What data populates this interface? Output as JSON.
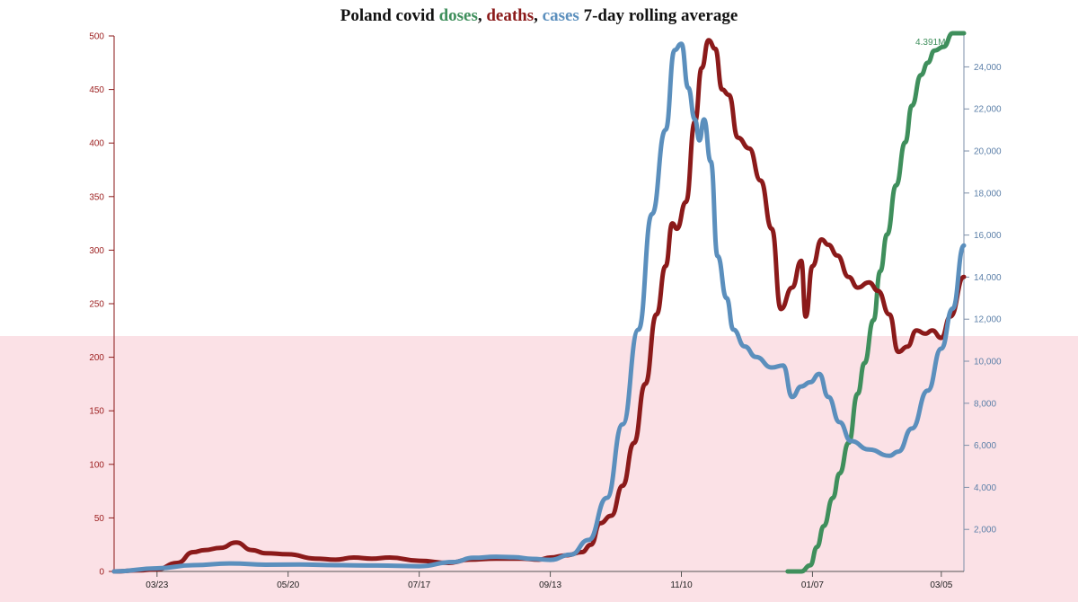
{
  "title": {
    "prefix": "Poland covid ",
    "doses": "doses",
    "sep1": ", ",
    "deaths": "deaths",
    "sep2": ", ",
    "cases": "cases",
    "suffix": " 7-day rolling average"
  },
  "chart_data": {
    "type": "line",
    "title": "Poland covid doses, deaths, cases 7-day rolling average",
    "x_start": "2020-03-04",
    "x_end": "2021-03-15",
    "x_ticks": [
      "03/23",
      "05/20",
      "07/17",
      "09/13",
      "11/10",
      "01/07",
      "03/05"
    ],
    "y_left": {
      "series": "deaths",
      "range": [
        0,
        500
      ],
      "ticks": [
        0,
        50,
        100,
        150,
        200,
        250,
        300,
        350,
        400,
        450,
        500
      ],
      "color": "#8b1a1a"
    },
    "y_right": {
      "series": "cases",
      "range": [
        0,
        25600
      ],
      "ticks": [
        "2,000",
        "4,000",
        "6,000",
        "8,000",
        "10,000",
        "12,000",
        "14,000",
        "16,000",
        "18,000",
        "20,000",
        "22,000",
        "24,000"
      ],
      "color": "#5b8fbd"
    },
    "annotation": "4.391M",
    "series": [
      {
        "name": "doses",
        "color": "#3f8f5c",
        "scale": "own",
        "max": 4391000,
        "points": [
          [
            "2020-12-27",
            0
          ],
          [
            "2021-01-02",
            0
          ],
          [
            "2021-01-06",
            50000
          ],
          [
            "2021-01-09",
            200000
          ],
          [
            "2021-01-12",
            370000
          ],
          [
            "2021-01-16",
            600000
          ],
          [
            "2021-01-19",
            800000
          ],
          [
            "2021-01-23",
            1050000
          ],
          [
            "2021-01-27",
            1450000
          ],
          [
            "2021-01-30",
            1700000
          ],
          [
            "2021-02-03",
            2050000
          ],
          [
            "2021-02-06",
            2450000
          ],
          [
            "2021-02-09",
            2750000
          ],
          [
            "2021-02-13",
            3150000
          ],
          [
            "2021-02-17",
            3500000
          ],
          [
            "2021-02-20",
            3800000
          ],
          [
            "2021-02-24",
            4050000
          ],
          [
            "2021-02-27",
            4150000
          ],
          [
            "2021-03-02",
            4250000
          ],
          [
            "2021-03-06",
            4280000
          ],
          [
            "2021-03-10",
            4391000
          ],
          [
            "2021-03-15",
            4391000
          ]
        ]
      },
      {
        "name": "deaths",
        "color": "#8b1a1a",
        "scale": "left",
        "points": [
          [
            "2020-03-04",
            0
          ],
          [
            "2020-03-15",
            1
          ],
          [
            "2020-03-23",
            2
          ],
          [
            "2020-04-01",
            8
          ],
          [
            "2020-04-08",
            18
          ],
          [
            "2020-04-13",
            20
          ],
          [
            "2020-04-20",
            22
          ],
          [
            "2020-04-27",
            27
          ],
          [
            "2020-05-04",
            20
          ],
          [
            "2020-05-10",
            17
          ],
          [
            "2020-05-20",
            16
          ],
          [
            "2020-06-01",
            12
          ],
          [
            "2020-06-10",
            11
          ],
          [
            "2020-06-18",
            13
          ],
          [
            "2020-06-26",
            12
          ],
          [
            "2020-07-04",
            13
          ],
          [
            "2020-07-17",
            10
          ],
          [
            "2020-07-30",
            8
          ],
          [
            "2020-08-08",
            11
          ],
          [
            "2020-08-20",
            12
          ],
          [
            "2020-08-31",
            12
          ],
          [
            "2020-09-08",
            11
          ],
          [
            "2020-09-13",
            13
          ],
          [
            "2020-09-20",
            15
          ],
          [
            "2020-09-27",
            18
          ],
          [
            "2020-10-01",
            25
          ],
          [
            "2020-10-05",
            45
          ],
          [
            "2020-10-10",
            52
          ],
          [
            "2020-10-15",
            80
          ],
          [
            "2020-10-20",
            120
          ],
          [
            "2020-10-25",
            175
          ],
          [
            "2020-10-30",
            240
          ],
          [
            "2020-11-03",
            285
          ],
          [
            "2020-11-06",
            325
          ],
          [
            "2020-11-08",
            320
          ],
          [
            "2020-11-12",
            345
          ],
          [
            "2020-11-16",
            420
          ],
          [
            "2020-11-19",
            470
          ],
          [
            "2020-11-22",
            496
          ],
          [
            "2020-11-25",
            488
          ],
          [
            "2020-11-28",
            450
          ],
          [
            "2020-12-01",
            445
          ],
          [
            "2020-12-05",
            405
          ],
          [
            "2020-12-10",
            395
          ],
          [
            "2020-12-15",
            365
          ],
          [
            "2020-12-20",
            320
          ],
          [
            "2020-12-24",
            245
          ],
          [
            "2020-12-29",
            265
          ],
          [
            "2021-01-02",
            290
          ],
          [
            "2021-01-04",
            238
          ],
          [
            "2021-01-07",
            285
          ],
          [
            "2021-01-11",
            310
          ],
          [
            "2021-01-14",
            305
          ],
          [
            "2021-01-18",
            295
          ],
          [
            "2021-01-23",
            275
          ],
          [
            "2021-01-27",
            265
          ],
          [
            "2021-02-01",
            270
          ],
          [
            "2021-02-05",
            262
          ],
          [
            "2021-02-10",
            240
          ],
          [
            "2021-02-14",
            205
          ],
          [
            "2021-02-18",
            210
          ],
          [
            "2021-02-22",
            225
          ],
          [
            "2021-02-26",
            222
          ],
          [
            "2021-03-01",
            225
          ],
          [
            "2021-03-05",
            218
          ],
          [
            "2021-03-09",
            238
          ],
          [
            "2021-03-15",
            275
          ]
        ]
      },
      {
        "name": "cases",
        "color": "#5b8fbd",
        "scale": "right",
        "points": [
          [
            "2020-03-04",
            0
          ],
          [
            "2020-03-23",
            150
          ],
          [
            "2020-04-08",
            300
          ],
          [
            "2020-04-25",
            380
          ],
          [
            "2020-05-10",
            320
          ],
          [
            "2020-05-25",
            330
          ],
          [
            "2020-06-10",
            300
          ],
          [
            "2020-06-28",
            280
          ],
          [
            "2020-07-17",
            250
          ],
          [
            "2020-08-01",
            450
          ],
          [
            "2020-08-10",
            650
          ],
          [
            "2020-08-20",
            700
          ],
          [
            "2020-08-28",
            680
          ],
          [
            "2020-09-05",
            600
          ],
          [
            "2020-09-13",
            550
          ],
          [
            "2020-09-22",
            800
          ],
          [
            "2020-09-30",
            1500
          ],
          [
            "2020-10-08",
            3500
          ],
          [
            "2020-10-15",
            7000
          ],
          [
            "2020-10-22",
            11500
          ],
          [
            "2020-10-28",
            17000
          ],
          [
            "2020-11-03",
            21000
          ],
          [
            "2020-11-07",
            24800
          ],
          [
            "2020-11-10",
            25100
          ],
          [
            "2020-11-13",
            23000
          ],
          [
            "2020-11-16",
            21500
          ],
          [
            "2020-11-18",
            20500
          ],
          [
            "2020-11-20",
            21500
          ],
          [
            "2020-11-23",
            19500
          ],
          [
            "2020-11-26",
            15000
          ],
          [
            "2020-11-30",
            13000
          ],
          [
            "2020-12-03",
            11500
          ],
          [
            "2020-12-08",
            10700
          ],
          [
            "2020-12-13",
            10200
          ],
          [
            "2020-12-20",
            9700
          ],
          [
            "2020-12-25",
            9800
          ],
          [
            "2020-12-29",
            8300
          ],
          [
            "2021-01-02",
            8800
          ],
          [
            "2021-01-06",
            9000
          ],
          [
            "2021-01-10",
            9400
          ],
          [
            "2021-01-14",
            8300
          ],
          [
            "2021-01-19",
            7100
          ],
          [
            "2021-01-24",
            6200
          ],
          [
            "2021-02-01",
            5800
          ],
          [
            "2021-02-10",
            5500
          ],
          [
            "2021-02-14",
            5700
          ],
          [
            "2021-02-20",
            6800
          ],
          [
            "2021-02-27",
            8600
          ],
          [
            "2021-03-05",
            10600
          ],
          [
            "2021-03-10",
            12500
          ],
          [
            "2021-03-15",
            15500
          ]
        ]
      }
    ]
  }
}
